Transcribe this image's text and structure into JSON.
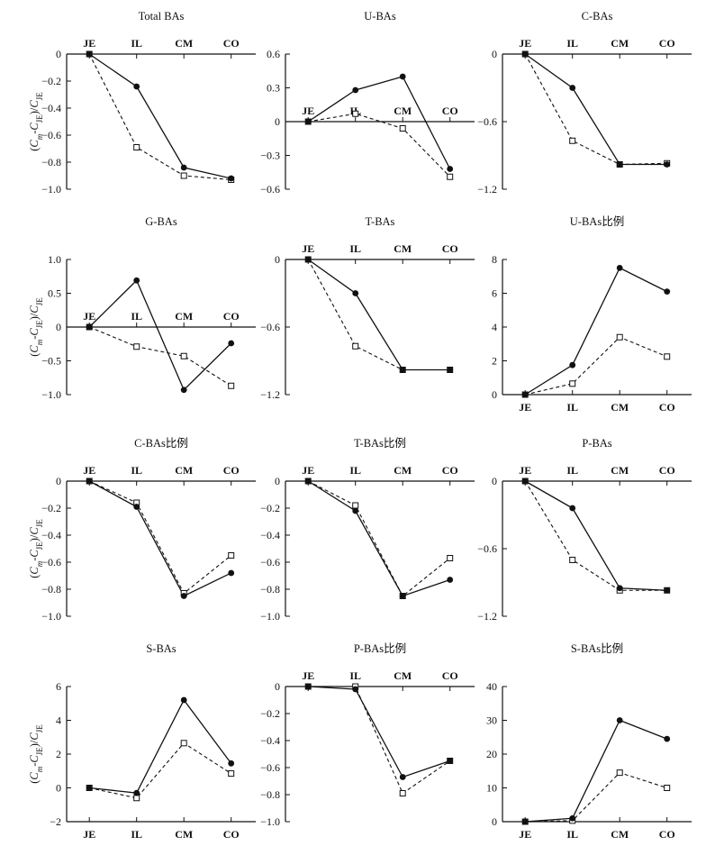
{
  "chart_data": [
    {
      "type": "line",
      "title": "Total BAs",
      "categories": [
        "JE",
        "IL",
        "CM",
        "CO"
      ],
      "ylabel": "(C_m-C_JE)/C_JE",
      "ylim": [
        -1.0,
        0
      ],
      "yticks": [
        0,
        -0.2,
        -0.4,
        -0.6,
        -0.8,
        -1.0
      ],
      "tick_labels": [
        "0",
        "−0.2",
        "−0.4",
        "−0.6",
        "−0.8",
        "−1.0"
      ],
      "x_position": "top",
      "series": [
        {
          "name": "solid-filled",
          "values": [
            0,
            -0.24,
            -0.84,
            -0.92
          ]
        },
        {
          "name": "dashed-open",
          "values": [
            0,
            -0.69,
            -0.9,
            -0.93
          ]
        }
      ]
    },
    {
      "type": "line",
      "title": "U-BAs",
      "categories": [
        "JE",
        "IL",
        "CM",
        "CO"
      ],
      "ylabel": "",
      "ylim": [
        -0.6,
        0.6
      ],
      "yticks": [
        0.6,
        0.3,
        0,
        -0.3,
        -0.6
      ],
      "tick_labels": [
        "0.6",
        "0.3",
        "0",
        "−0.3",
        "−0.6"
      ],
      "x_position": "zero",
      "series": [
        {
          "name": "solid-filled",
          "values": [
            0,
            0.28,
            0.4,
            -0.42
          ]
        },
        {
          "name": "dashed-open",
          "values": [
            0,
            0.07,
            -0.06,
            -0.49
          ]
        }
      ]
    },
    {
      "type": "line",
      "title": "C-BAs",
      "categories": [
        "JE",
        "IL",
        "CM",
        "CO"
      ],
      "ylabel": "",
      "ylim": [
        -1.2,
        0
      ],
      "yticks": [
        0,
        -0.6,
        -1.2
      ],
      "tick_labels": [
        "0",
        "−0.6",
        "−1.2"
      ],
      "x_position": "top",
      "series": [
        {
          "name": "solid-filled",
          "values": [
            0,
            -0.3,
            -0.98,
            -0.98
          ]
        },
        {
          "name": "dashed-open",
          "values": [
            0,
            -0.77,
            -0.98,
            -0.97
          ]
        }
      ]
    },
    {
      "type": "line",
      "title": "G-BAs",
      "categories": [
        "JE",
        "IL",
        "CM",
        "CO"
      ],
      "ylabel": "(C_m-C_JE)/C_JE",
      "ylim": [
        -1.0,
        1.0
      ],
      "yticks": [
        1.0,
        0.5,
        0,
        -0.5,
        -1.0
      ],
      "tick_labels": [
        "1.0",
        "0.5",
        "0",
        "−0.5",
        "−1.0"
      ],
      "x_position": "zero",
      "series": [
        {
          "name": "solid-filled",
          "values": [
            0,
            0.69,
            -0.93,
            -0.24
          ]
        },
        {
          "name": "dashed-open",
          "values": [
            0,
            -0.29,
            -0.43,
            -0.87
          ]
        }
      ]
    },
    {
      "type": "line",
      "title": "T-BAs",
      "categories": [
        "JE",
        "IL",
        "CM",
        "CO"
      ],
      "ylabel": "",
      "ylim": [
        -1.2,
        0
      ],
      "yticks": [
        0,
        -0.6,
        -1.2
      ],
      "tick_labels": [
        "0",
        "−0.6",
        "−1.2"
      ],
      "x_position": "top",
      "series": [
        {
          "name": "solid-filled",
          "values": [
            0,
            -0.3,
            -0.98,
            -0.98
          ]
        },
        {
          "name": "dashed-open",
          "values": [
            0,
            -0.77,
            -0.98,
            -0.98
          ]
        }
      ]
    },
    {
      "type": "line",
      "title": "U-BAs比例",
      "categories": [
        "JE",
        "IL",
        "CM",
        "CO"
      ],
      "ylabel": "",
      "ylim": [
        0,
        8
      ],
      "yticks": [
        8,
        6,
        4,
        2,
        0
      ],
      "tick_labels": [
        "8",
        "6",
        "4",
        "2",
        "0"
      ],
      "x_position": "bottom",
      "series": [
        {
          "name": "solid-filled",
          "values": [
            0,
            1.75,
            7.5,
            6.1
          ]
        },
        {
          "name": "dashed-open",
          "values": [
            0,
            0.65,
            3.4,
            2.25
          ]
        }
      ]
    },
    {
      "type": "line",
      "title": "C-BAs比例",
      "categories": [
        "JE",
        "IL",
        "CM",
        "CO"
      ],
      "ylabel": "(C_m-C_JE)/C_JE",
      "ylim": [
        -1.0,
        0
      ],
      "yticks": [
        0,
        -0.2,
        -0.4,
        -0.6,
        -0.8,
        -1.0
      ],
      "tick_labels": [
        "0",
        "−0.2",
        "−0.4",
        "−0.6",
        "−0.8",
        "−1.0"
      ],
      "x_position": "top",
      "series": [
        {
          "name": "solid-filled",
          "values": [
            0,
            -0.19,
            -0.85,
            -0.68
          ]
        },
        {
          "name": "dashed-open",
          "values": [
            0,
            -0.16,
            -0.83,
            -0.55
          ]
        }
      ]
    },
    {
      "type": "line",
      "title": "T-BAs比例",
      "categories": [
        "JE",
        "IL",
        "CM",
        "CO"
      ],
      "ylabel": "",
      "ylim": [
        -1.0,
        0
      ],
      "yticks": [
        0,
        -0.2,
        -0.4,
        -0.6,
        -0.8,
        -1.0
      ],
      "tick_labels": [
        "0",
        "−0.2",
        "−0.4",
        "−0.6",
        "−0.8",
        "−1.0"
      ],
      "x_position": "top",
      "series": [
        {
          "name": "solid-filled",
          "values": [
            0,
            -0.22,
            -0.85,
            -0.73
          ]
        },
        {
          "name": "dashed-open",
          "values": [
            0,
            -0.18,
            -0.85,
            -0.57
          ]
        }
      ]
    },
    {
      "type": "line",
      "title": "P-BAs",
      "categories": [
        "JE",
        "IL",
        "CM",
        "CO"
      ],
      "ylabel": "",
      "ylim": [
        -1.2,
        0
      ],
      "yticks": [
        0,
        -0.6,
        -1.2
      ],
      "tick_labels": [
        "0",
        "−0.6",
        "−1.2"
      ],
      "x_position": "top",
      "series": [
        {
          "name": "solid-filled",
          "values": [
            0,
            -0.24,
            -0.95,
            -0.97
          ]
        },
        {
          "name": "dashed-open",
          "values": [
            0,
            -0.7,
            -0.97,
            -0.97
          ]
        }
      ]
    },
    {
      "type": "line",
      "title": "S-BAs",
      "categories": [
        "JE",
        "IL",
        "CM",
        "CO"
      ],
      "ylabel": "(C_m-C_JE)/C_JE",
      "ylim": [
        -2,
        6
      ],
      "yticks": [
        6,
        4,
        2,
        0,
        -2
      ],
      "tick_labels": [
        "6",
        "4",
        "2",
        "0",
        "−2"
      ],
      "x_position": "bottom",
      "series": [
        {
          "name": "solid-filled",
          "values": [
            0,
            -0.3,
            5.2,
            1.45
          ]
        },
        {
          "name": "dashed-open",
          "values": [
            0,
            -0.6,
            2.65,
            0.85
          ]
        }
      ]
    },
    {
      "type": "line",
      "title": "P-BAs比例",
      "categories": [
        "JE",
        "IL",
        "CM",
        "CO"
      ],
      "ylabel": "",
      "ylim": [
        -1.0,
        0
      ],
      "yticks": [
        0,
        -0.2,
        -0.4,
        -0.6,
        -0.8,
        -1.0
      ],
      "tick_labels": [
        "0",
        "−0.2",
        "−0.4",
        "−0.6",
        "−0.8",
        "−1.0"
      ],
      "x_position": "top",
      "series": [
        {
          "name": "solid-filled",
          "values": [
            0,
            -0.02,
            -0.67,
            -0.55
          ]
        },
        {
          "name": "dashed-open",
          "values": [
            0,
            0,
            -0.79,
            -0.55
          ]
        }
      ]
    },
    {
      "type": "line",
      "title": "S-BAs比例",
      "categories": [
        "JE",
        "IL",
        "CM",
        "CO"
      ],
      "ylabel": "",
      "ylim": [
        0,
        40
      ],
      "yticks": [
        40,
        30,
        20,
        10,
        0
      ],
      "tick_labels": [
        "40",
        "30",
        "20",
        "10",
        "0"
      ],
      "x_position": "bottom",
      "series": [
        {
          "name": "solid-filled",
          "values": [
            0,
            1.0,
            30,
            24.5
          ]
        },
        {
          "name": "dashed-open",
          "values": [
            0,
            0.3,
            14.5,
            10
          ]
        }
      ]
    }
  ]
}
